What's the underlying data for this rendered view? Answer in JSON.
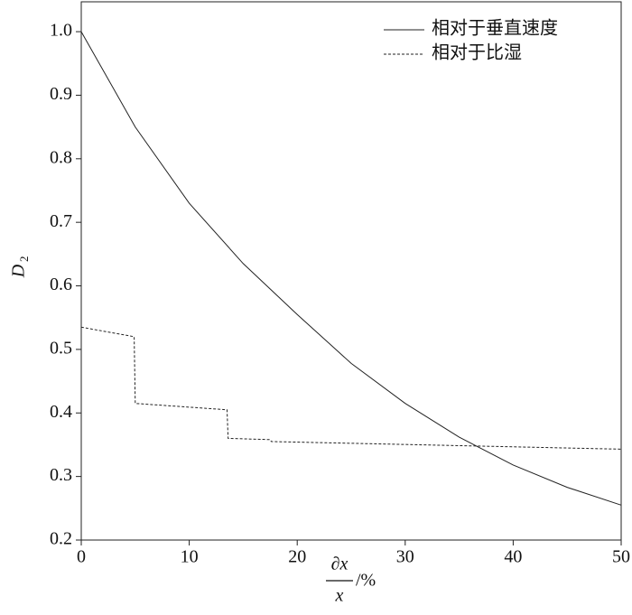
{
  "chart_data": {
    "type": "line",
    "xlabel": {
      "numerator": "∂x",
      "denominator": "x",
      "suffix": "/%"
    },
    "ylabel": {
      "text": "D",
      "sub": "2"
    },
    "xlim": [
      0,
      50
    ],
    "ylim": [
      0.2,
      1.047
    ],
    "xticks": [
      0,
      10,
      20,
      30,
      40,
      50
    ],
    "yticks": [
      0.2,
      0.3,
      0.4,
      0.5,
      0.6,
      0.7,
      0.8,
      0.9,
      {
        "value": 1,
        "label": "1.0"
      }
    ],
    "legend": "upper right",
    "series": [
      {
        "name": "相对于垂直速度",
        "color": "#222222",
        "dash": false,
        "x": [
          0,
          5,
          10,
          15,
          20,
          25,
          30,
          35,
          40,
          45,
          50
        ],
        "values": [
          1.0,
          0.85,
          0.73,
          0.635,
          0.555,
          0.478,
          0.415,
          0.362,
          0.318,
          0.283,
          0.255
        ]
      },
      {
        "name": "相对于比湿",
        "color": "#222222",
        "dash": true,
        "x": [
          0,
          4.9,
          5,
          13.5,
          13.6,
          17.5,
          17.6,
          50
        ],
        "values": [
          0.535,
          0.52,
          0.415,
          0.405,
          0.36,
          0.358,
          0.355,
          0.343
        ]
      }
    ]
  }
}
